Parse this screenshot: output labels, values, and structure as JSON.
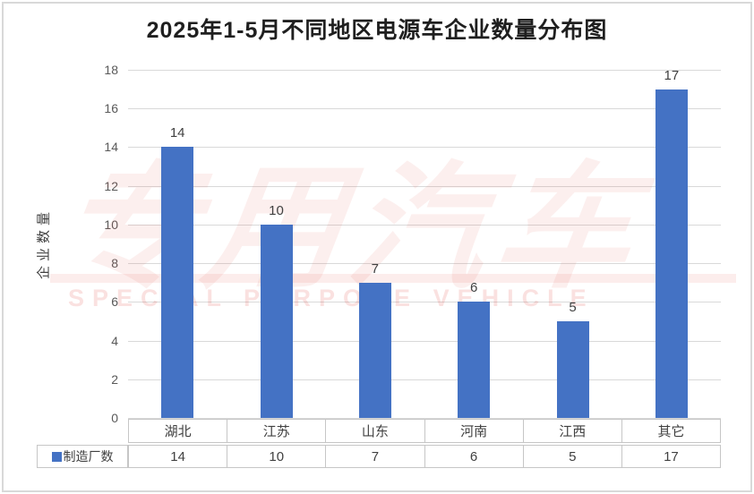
{
  "chart_data": {
    "type": "bar",
    "title": "2025年1-5月不同地区电源车企业数量分布图",
    "categories": [
      "湖北",
      "江苏",
      "山东",
      "河南",
      "江西",
      "其它"
    ],
    "series": [
      {
        "name": "制造厂数",
        "values": [
          14,
          10,
          7,
          6,
          5,
          17
        ]
      }
    ],
    "xlabel": "",
    "ylabel": "企业数量",
    "ylim": [
      0,
      18
    ],
    "yticks": [
      0,
      2,
      4,
      6,
      8,
      10,
      12,
      14,
      16,
      18
    ],
    "grid": true,
    "data_labels": true,
    "legend_position": "bottom-left-table",
    "data_table": {
      "row_label": "制造厂数",
      "columns": [
        "湖北",
        "江苏",
        "山东",
        "河南",
        "江西",
        "其它"
      ],
      "values": [
        "14",
        "10",
        "7",
        "6",
        "5",
        "17"
      ]
    }
  },
  "watermark": {
    "text_cn": "专用汽车",
    "text_en": "SPECIAL PURPOSE VEHICLE"
  },
  "colors": {
    "bar": "#4472C4",
    "gridline": "#D9D9D9",
    "axis_text": "#595959",
    "label_text": "#404040",
    "title_text": "#1F1F1F",
    "table_border": "#C6C6C6",
    "watermark_red": "#E14D46"
  }
}
